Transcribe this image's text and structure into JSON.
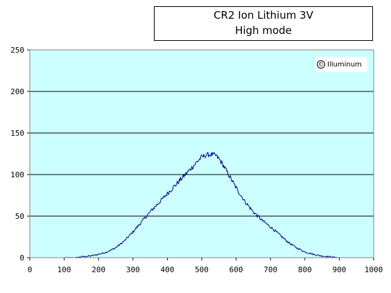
{
  "chart_data": {
    "type": "line",
    "title": "CR2 Ion Lithium 3V",
    "subtitle": "High mode",
    "xlabel": "",
    "ylabel": "",
    "xlim": [
      0,
      1000
    ],
    "ylim": [
      0,
      250
    ],
    "x_ticks": [
      0,
      100,
      200,
      300,
      400,
      500,
      600,
      700,
      800,
      900,
      1000
    ],
    "y_ticks": [
      0,
      50,
      100,
      150,
      200,
      250
    ],
    "grid": "horizontal",
    "legend": "none",
    "plot_background": "#ccffff",
    "line_color": "#000080",
    "series": [
      {
        "x": [
          100,
          130,
          150,
          175,
          200,
          225,
          250,
          275,
          300,
          325,
          350,
          375,
          400,
          425,
          450,
          475,
          490,
          500,
          510,
          520,
          530,
          540,
          550,
          560,
          575,
          600,
          625,
          650,
          675,
          700,
          725,
          750,
          775,
          800,
          825,
          850,
          875,
          900,
          910
        ],
        "y": [
          0,
          0,
          1,
          2,
          4,
          7,
          12,
          20,
          31,
          43,
          55,
          66,
          77,
          88,
          99,
          110,
          117,
          121,
          123,
          124,
          124,
          123,
          119,
          113,
          102,
          84,
          68,
          55,
          45,
          37,
          28,
          19,
          12,
          7,
          4,
          2,
          1,
          0,
          0
        ]
      }
    ]
  },
  "watermark": {
    "symbol": "©",
    "text": "Illuminum"
  }
}
